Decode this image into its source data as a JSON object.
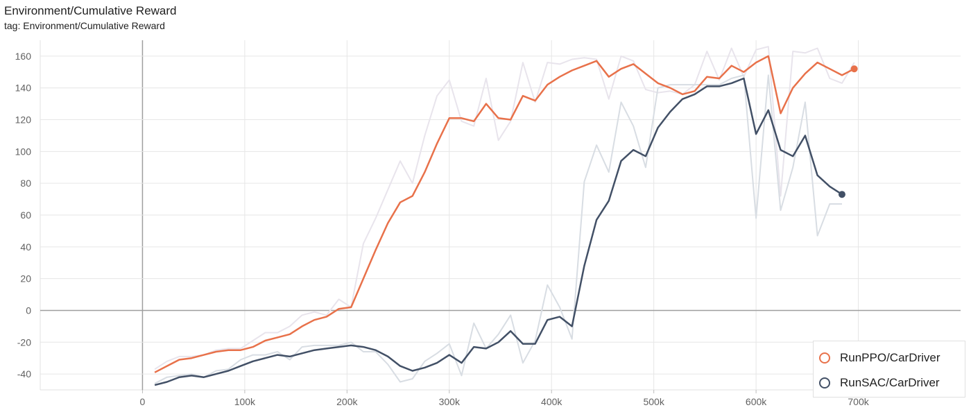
{
  "header": {
    "title": "Environment/Cumulative Reward",
    "subtitle": "tag: Environment/Cumulative Reward"
  },
  "chart_data": {
    "type": "line",
    "title": "Environment/Cumulative Reward",
    "xlabel": "",
    "ylabel": "",
    "xlim": [
      -100000,
      800000
    ],
    "ylim": [
      -50,
      170
    ],
    "x_ticks": [
      0,
      100000,
      200000,
      300000,
      400000,
      500000,
      600000,
      700000
    ],
    "x_tick_labels": [
      "0",
      "100k",
      "200k",
      "300k",
      "400k",
      "500k",
      "600k",
      "700k"
    ],
    "y_ticks": [
      -40,
      -20,
      0,
      20,
      40,
      60,
      80,
      100,
      120,
      140,
      160
    ],
    "y_tick_labels": [
      "-40",
      "-20",
      "0",
      "20",
      "40",
      "60",
      "80",
      "100",
      "120",
      "140",
      "160"
    ],
    "grid": true,
    "legend_position": "bottom-right",
    "series": [
      {
        "name": "RunPPO/CarDriver",
        "color": "#e8714a",
        "raw_color": "#e8e4ec",
        "x": [
          12000,
          24000,
          36000,
          48000,
          60000,
          72000,
          84000,
          96000,
          108000,
          120000,
          132000,
          144000,
          156000,
          168000,
          180000,
          192000,
          204000,
          216000,
          228000,
          240000,
          252000,
          264000,
          276000,
          288000,
          300000,
          312000,
          324000,
          336000,
          348000,
          360000,
          372000,
          384000,
          396000,
          408000,
          420000,
          432000,
          444000,
          456000,
          468000,
          480000,
          492000,
          504000,
          516000,
          528000,
          540000,
          552000,
          564000,
          576000,
          588000,
          600000,
          612000,
          624000,
          636000,
          648000,
          660000,
          672000,
          684000,
          696000
        ],
        "smoothed": [
          -39,
          -35,
          -31,
          -30,
          -28,
          -26,
          -25,
          -25,
          -23,
          -19,
          -17,
          -15,
          -10,
          -6,
          -4,
          1,
          2,
          20,
          38,
          55,
          68,
          72,
          87,
          105,
          121,
          121,
          119,
          130,
          121,
          120,
          135,
          132,
          142,
          147,
          151,
          154,
          157,
          147,
          152,
          155,
          149,
          143,
          140,
          136,
          138,
          147,
          146,
          154,
          150,
          156,
          160,
          124,
          140,
          149,
          156,
          152,
          148,
          152
        ],
        "raw": [
          -37,
          -32,
          -29,
          -29,
          -28,
          -25,
          -24,
          -24,
          -19,
          -14,
          -14,
          -10,
          -3,
          -1,
          -3,
          7,
          2,
          42,
          58,
          76,
          94,
          80,
          110,
          135,
          145,
          119,
          116,
          146,
          107,
          119,
          156,
          131,
          156,
          155,
          158,
          159,
          158,
          133,
          160,
          157,
          139,
          137,
          138,
          136,
          142,
          163,
          145,
          165,
          147,
          164,
          166,
          72,
          163,
          162,
          165,
          146,
          143,
          156
        ]
      },
      {
        "name": "RunSAC/CarDriver",
        "color": "#425066",
        "raw_color": "#d8dde3",
        "x": [
          12000,
          24000,
          36000,
          48000,
          60000,
          72000,
          84000,
          96000,
          108000,
          120000,
          132000,
          144000,
          156000,
          168000,
          180000,
          192000,
          204000,
          216000,
          228000,
          240000,
          252000,
          264000,
          276000,
          288000,
          300000,
          312000,
          324000,
          336000,
          348000,
          360000,
          372000,
          384000,
          396000,
          408000,
          420000,
          432000,
          444000,
          456000,
          468000,
          480000,
          492000,
          504000,
          516000,
          528000,
          540000,
          552000,
          564000,
          576000,
          588000,
          600000,
          612000,
          624000,
          636000,
          648000,
          660000,
          672000,
          684000
        ],
        "smoothed": [
          -47,
          -45,
          -42,
          -41,
          -42,
          -40,
          -38,
          -35,
          -32,
          -30,
          -28,
          -29,
          -27,
          -25,
          -24,
          -23,
          -22,
          -23,
          -25,
          -29,
          -35,
          -38,
          -36,
          -33,
          -28,
          -33,
          -23,
          -24,
          -20,
          -13,
          -21,
          -21,
          -6,
          -4,
          -10,
          28,
          57,
          69,
          94,
          101,
          97,
          115,
          125,
          133,
          136,
          141,
          141,
          143,
          146,
          111,
          126,
          101,
          97,
          110,
          85,
          78,
          73
        ],
        "raw": [
          -46,
          -42,
          -41,
          -40,
          -42,
          -38,
          -37,
          -31,
          -28,
          -28,
          -26,
          -31,
          -23,
          -22,
          -22,
          -22,
          -20,
          -26,
          -26,
          -34,
          -45,
          -43,
          -32,
          -27,
          -21,
          -41,
          -8,
          -24,
          -15,
          -3,
          -33,
          -19,
          16,
          2,
          -18,
          81,
          104,
          87,
          131,
          116,
          90,
          140,
          142,
          142,
          142,
          142,
          142,
          146,
          148,
          58,
          148,
          63,
          90,
          131,
          47,
          67,
          67
        ]
      }
    ]
  }
}
